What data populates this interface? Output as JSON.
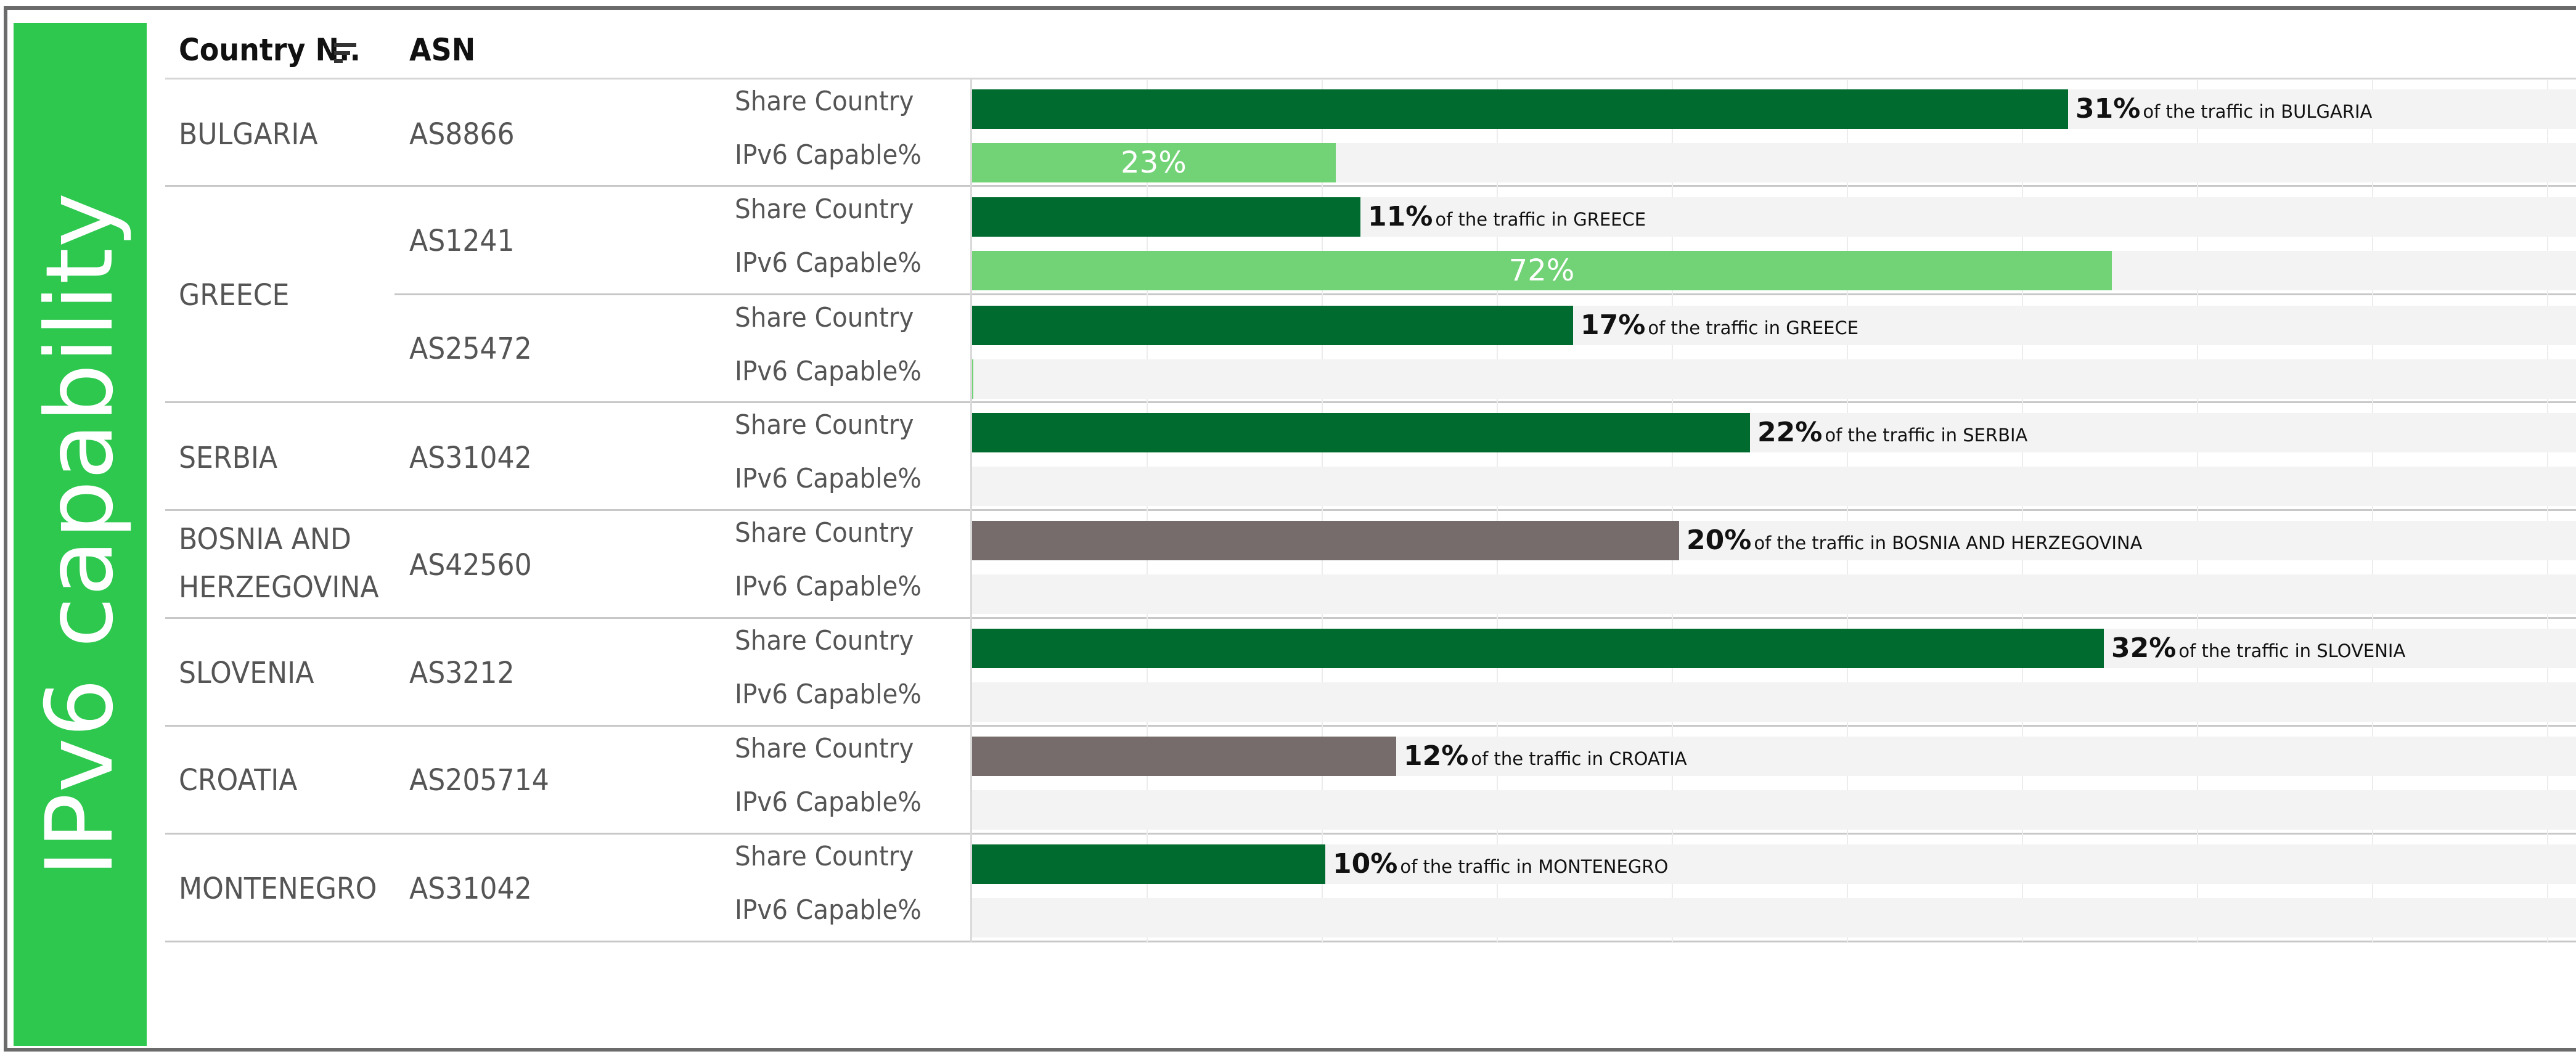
{
  "side_title": "IPv6 capability",
  "headers": {
    "country": "Country N..",
    "asn": "ASN",
    "sort_icon": "sort-descending-icon"
  },
  "colors": {
    "share_green": "#006b2e",
    "share_gray": "#766c6c",
    "ipv6_green": "#72d276",
    "track": "#f3f3f3",
    "banner": "#2ec84f"
  },
  "measure_labels": {
    "share": "Share Country",
    "ipv6": "IPv6 Capable%"
  },
  "annotation_phrase": "of the traffic in",
  "chart_data": {
    "type": "bar",
    "orientation": "horizontal",
    "measures": [
      "Share Country",
      "IPv6 Capable%"
    ],
    "rows": [
      {
        "country": "BULGARIA",
        "asn": "AS8866",
        "share_country": 31,
        "share_label": "31%",
        "share_text": "of the traffic in BULGARIA",
        "share_color": "green",
        "ipv6_capable": 23,
        "ipv6_label": "23%"
      },
      {
        "country": "GREECE",
        "asn": "AS1241",
        "share_country": 11,
        "share_label": "11%",
        "share_text": "of the traffic in GREECE",
        "share_color": "green",
        "ipv6_capable": 72,
        "ipv6_label": "72%"
      },
      {
        "country": "GREECE",
        "asn": "AS25472",
        "share_country": 17,
        "share_label": "17%",
        "share_text": "of the traffic in GREECE",
        "share_color": "green",
        "ipv6_capable": 0.1,
        "ipv6_label": ""
      },
      {
        "country": "SERBIA",
        "asn": "AS31042",
        "share_country": 22,
        "share_label": "22%",
        "share_text": "of the traffic in SERBIA",
        "share_color": "green",
        "ipv6_capable": 0,
        "ipv6_label": ""
      },
      {
        "country": "BOSNIA AND HERZEGOVINA",
        "asn": "AS42560",
        "share_country": 20,
        "share_label": "20%",
        "share_text": "of the traffic in BOSNIA AND HERZEGOVINA",
        "share_color": "gray",
        "ipv6_capable": 0,
        "ipv6_label": ""
      },
      {
        "country": "SLOVENIA",
        "asn": "AS3212",
        "share_country": 32,
        "share_label": "32%",
        "share_text": "of the traffic in SLOVENIA",
        "share_color": "green",
        "ipv6_capable": 0,
        "ipv6_label": ""
      },
      {
        "country": "CROATIA",
        "asn": "AS205714",
        "share_country": 12,
        "share_label": "12%",
        "share_text": "of the traffic in CROATIA",
        "share_color": "gray",
        "ipv6_capable": 0,
        "ipv6_label": ""
      },
      {
        "country": "MONTENEGRO",
        "asn": "AS31042",
        "share_country": 10,
        "share_label": "10%",
        "share_text": "of the traffic in MONTENEGRO",
        "share_color": "green",
        "ipv6_capable": 0,
        "ipv6_label": ""
      }
    ],
    "x_range": [
      0,
      100
    ],
    "grid": true
  },
  "country_display": {
    "bulgaria": "BULGARIA",
    "greece": "GREECE",
    "serbia": "SERBIA",
    "bosnia_line1": "BOSNIA AND",
    "bosnia_line2": "HERZEGOVINA",
    "slovenia": "SLOVENIA",
    "croatia": "CROATIA",
    "montenegro": "MONTENEGRO"
  }
}
